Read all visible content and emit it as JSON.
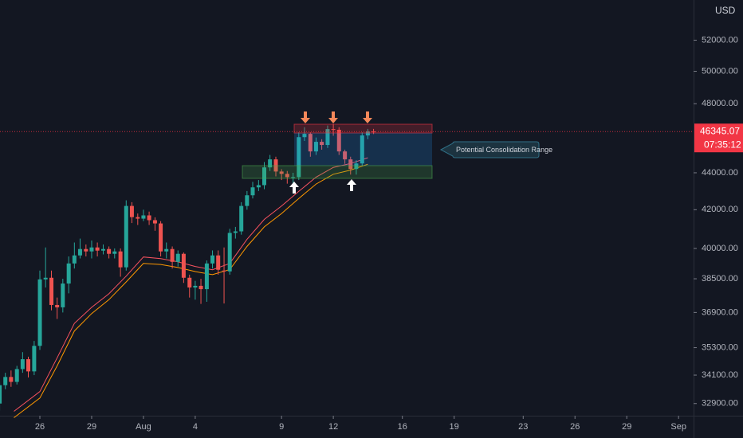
{
  "chart_data": {
    "type": "candlestick",
    "currency": "USD",
    "log_scale": true,
    "up_color": "#26a69a",
    "down_color": "#ef5350",
    "ylim": [
      32400,
      54700
    ],
    "yticks": [
      {
        "value": 32900,
        "label": "32900.00"
      },
      {
        "value": 34100,
        "label": "34100.00"
      },
      {
        "value": 35300,
        "label": "35300.00"
      },
      {
        "value": 36900,
        "label": "36900.00"
      },
      {
        "value": 38500,
        "label": "38500.00"
      },
      {
        "value": 40000,
        "label": "40000.00"
      },
      {
        "value": 42000,
        "label": "42000.00"
      },
      {
        "value": 44000,
        "label": "44000.00"
      },
      {
        "value": 48000,
        "label": "48000.00"
      },
      {
        "value": 50000,
        "label": "50000.00"
      },
      {
        "value": 52000,
        "label": "52000.00"
      }
    ],
    "xlim": [
      -8.31,
      31.87
    ],
    "xticks": [
      {
        "value": -6,
        "label": "26"
      },
      {
        "value": -3,
        "label": "29"
      },
      {
        "value": 0,
        "label": "Aug"
      },
      {
        "value": 3,
        "label": "4"
      },
      {
        "value": 8,
        "label": "9"
      },
      {
        "value": 11,
        "label": "12"
      },
      {
        "value": 15,
        "label": "16"
      },
      {
        "value": 18,
        "label": "19"
      },
      {
        "value": 22,
        "label": "23"
      },
      {
        "value": 25,
        "label": "26"
      },
      {
        "value": 28,
        "label": "29"
      },
      {
        "value": 31,
        "label": "Sep"
      }
    ],
    "x": [
      -8.33,
      -8,
      -7.67,
      -7.33,
      -7,
      -6.67,
      -6.33,
      -6,
      -5.67,
      -5.33,
      -5,
      -4.67,
      -4.33,
      -4,
      -3.67,
      -3.33,
      -3,
      -2.67,
      -2.33,
      -2,
      -1.67,
      -1.33,
      -1,
      -0.67,
      -0.33,
      0,
      0.33,
      0.67,
      1,
      1.33,
      1.67,
      2,
      2.33,
      2.67,
      3,
      3.33,
      3.67,
      4,
      4.33,
      4.67,
      5,
      5.33,
      5.67,
      6,
      6.33,
      6.67,
      7,
      7.33,
      7.67,
      8,
      8.33,
      8.67,
      9,
      9.33,
      9.67,
      10,
      10.33,
      10.67,
      11,
      11.33,
      11.67,
      12,
      12.33,
      12.67,
      13,
      13.33
    ],
    "open": [
      32900,
      33670,
      34020,
      33810,
      34360,
      34790,
      34260,
      35380,
      38470,
      38550,
      37250,
      37140,
      38270,
      39250,
      39650,
      39970,
      39850,
      40050,
      39890,
      39970,
      39730,
      39850,
      39060,
      42200,
      41610,
      41530,
      41700,
      41450,
      41280,
      39850,
      39970,
      39330,
      39730,
      38550,
      38080,
      38160,
      38000,
      39250,
      39650,
      38900,
      38860,
      40790,
      40870,
      42200,
      42770,
      43200,
      43320,
      44300,
      44750,
      44070,
      43940,
      43760,
      43760,
      46020,
      46210,
      45200,
      45750,
      45570,
      46490,
      46450,
      45200,
      44750,
      44210,
      44520,
      46120,
      46350
    ],
    "high": [
      33810,
      34200,
      34300,
      34500,
      35100,
      34900,
      35600,
      38900,
      40050,
      38900,
      37600,
      38500,
      39600,
      40300,
      40500,
      40200,
      40400,
      40300,
      40200,
      40100,
      40000,
      40000,
      42500,
      42400,
      41800,
      42000,
      41900,
      41600,
      41400,
      40300,
      40100,
      39900,
      39800,
      38700,
      38400,
      38500,
      39400,
      39900,
      39900,
      40050,
      41000,
      41100,
      42400,
      43000,
      43500,
      43600,
      44600,
      45000,
      44900,
      44200,
      44100,
      44000,
      46300,
      46600,
      46300,
      46000,
      45900,
      46700,
      46800,
      46600,
      45300,
      44900,
      44700,
      46300,
      46500,
      46500
    ],
    "low": [
      32610,
      33500,
      33600,
      33700,
      34200,
      34000,
      34100,
      35200,
      38080,
      37000,
      36600,
      36900,
      37800,
      39000,
      39500,
      39600,
      39500,
      39600,
      39700,
      39500,
      39500,
      38600,
      38900,
      41300,
      41200,
      41400,
      41200,
      40900,
      39600,
      39500,
      39000,
      39100,
      38300,
      37600,
      37500,
      37300,
      37400,
      39000,
      38700,
      37320,
      38700,
      40500,
      40700,
      42000,
      42600,
      43000,
      43100,
      44100,
      43800,
      43600,
      43400,
      43100,
      43600,
      45800,
      44900,
      45000,
      45300,
      45400,
      46100,
      45000,
      44500,
      43900,
      43900,
      44400,
      45900,
      46200
    ],
    "close": [
      33670,
      34020,
      33810,
      34360,
      34790,
      34260,
      35380,
      38470,
      38550,
      37250,
      37140,
      38270,
      39250,
      39650,
      39970,
      39850,
      40050,
      39890,
      39970,
      39730,
      39850,
      39060,
      42200,
      41610,
      41530,
      41700,
      41450,
      41280,
      39850,
      39970,
      39330,
      39730,
      38550,
      38080,
      38160,
      38000,
      39250,
      39650,
      38940,
      38860,
      40790,
      40870,
      42200,
      42770,
      43200,
      43320,
      44300,
      44750,
      44070,
      43940,
      43760,
      43760,
      46020,
      46210,
      45200,
      45750,
      45570,
      46490,
      46450,
      45200,
      44750,
      44210,
      44520,
      46120,
      46350,
      46345
    ],
    "overlays": [
      {
        "color": "#f7525f",
        "x": [
          -7.5,
          -6,
          -5,
          -4,
          -3,
          -2,
          -1,
          0,
          1,
          2,
          3,
          4,
          5,
          6,
          7,
          8,
          9,
          10,
          11,
          12,
          13
        ],
        "values": [
          32580,
          33400,
          34850,
          36400,
          37140,
          37780,
          38630,
          39570,
          39490,
          39330,
          39100,
          38940,
          39250,
          40460,
          41490,
          42200,
          42980,
          43760,
          44300,
          44520,
          44840
        ]
      },
      {
        "color": "#ff9800",
        "x": [
          -7.5,
          -6,
          -5,
          -4,
          -3,
          -2,
          -1,
          0,
          1,
          2,
          3,
          4,
          5,
          6,
          7,
          8,
          9,
          10,
          11,
          12,
          13
        ],
        "values": [
          32320,
          33130,
          34500,
          36050,
          36850,
          37500,
          38350,
          39250,
          39200,
          39050,
          38850,
          38700,
          38950,
          40100,
          41100,
          41800,
          42600,
          43380,
          43920,
          44150,
          44480
        ]
      }
    ],
    "last_price": 46345.07,
    "countdown": "07:35:12",
    "annotation": "Potential Consolidation Range"
  }
}
